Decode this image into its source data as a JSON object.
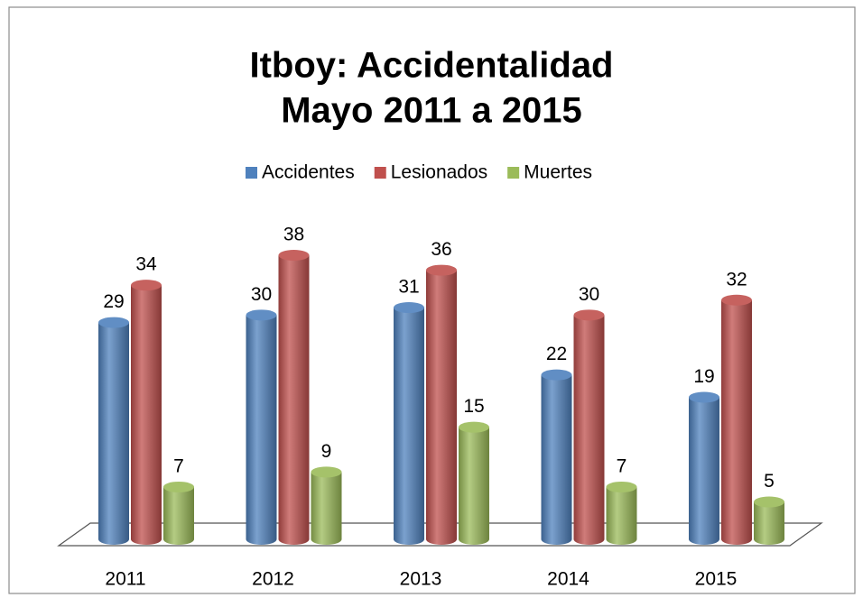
{
  "chart_data": {
    "type": "bar",
    "title": [
      "Itboy: Accidentalidad",
      "Mayo 2011 a 2015"
    ],
    "categories": [
      "2011",
      "2012",
      "2013",
      "2014",
      "2015"
    ],
    "series": [
      {
        "name": "Accidentes",
        "color": "#4f81bd",
        "values": [
          29,
          30,
          31,
          22,
          19
        ]
      },
      {
        "name": "Lesionados",
        "color": "#c0504d",
        "values": [
          34,
          38,
          36,
          30,
          32
        ]
      },
      {
        "name": "Muertes",
        "color": "#9bbb59",
        "values": [
          7,
          9,
          15,
          7,
          5
        ]
      }
    ],
    "legend": "top"
  }
}
